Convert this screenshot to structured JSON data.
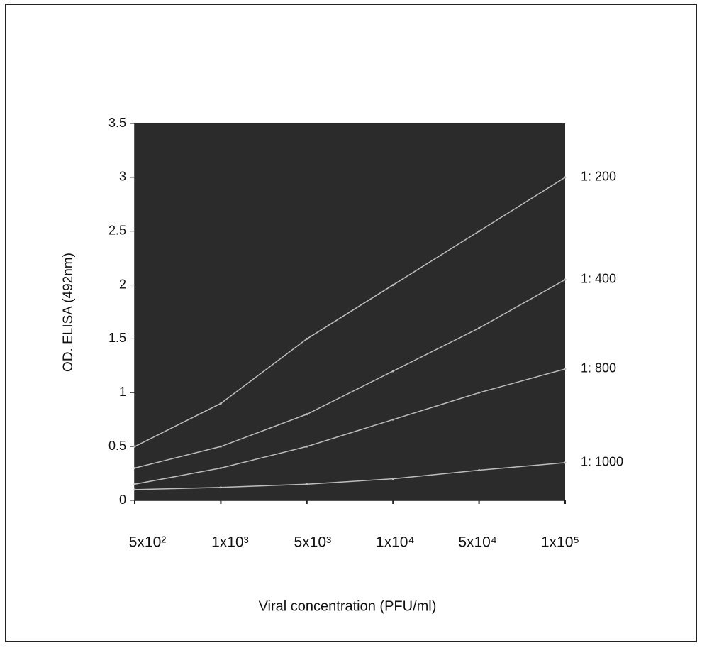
{
  "chart_data": {
    "type": "line",
    "x_label": "Viral concentration (PFU/ml)",
    "y_label": "OD. ELISA (492nm)",
    "categories": [
      "5x10²",
      "1x10³",
      "5x10³",
      "1x10⁴",
      "5x10⁴",
      "1x10⁵"
    ],
    "series": [
      {
        "name": "1: 200",
        "color": "#bdbdbd",
        "values": [
          0.5,
          0.9,
          1.5,
          2.0,
          2.5,
          3.0
        ]
      },
      {
        "name": "1: 400",
        "color": "#bdbdbd",
        "values": [
          0.3,
          0.5,
          0.8,
          1.2,
          1.6,
          2.05
        ]
      },
      {
        "name": "1: 800",
        "color": "#bdbdbd",
        "values": [
          0.15,
          0.3,
          0.5,
          0.75,
          1.0,
          1.22
        ]
      },
      {
        "name": "1: 1000",
        "color": "#bdbdbd",
        "values": [
          0.1,
          0.12,
          0.15,
          0.2,
          0.28,
          0.35
        ]
      }
    ],
    "ylim": [
      0,
      3.5
    ],
    "yticks": [
      0,
      0.5,
      1,
      1.5,
      2,
      2.5,
      3,
      3.5
    ],
    "plot_background": "#2b2b2b"
  }
}
